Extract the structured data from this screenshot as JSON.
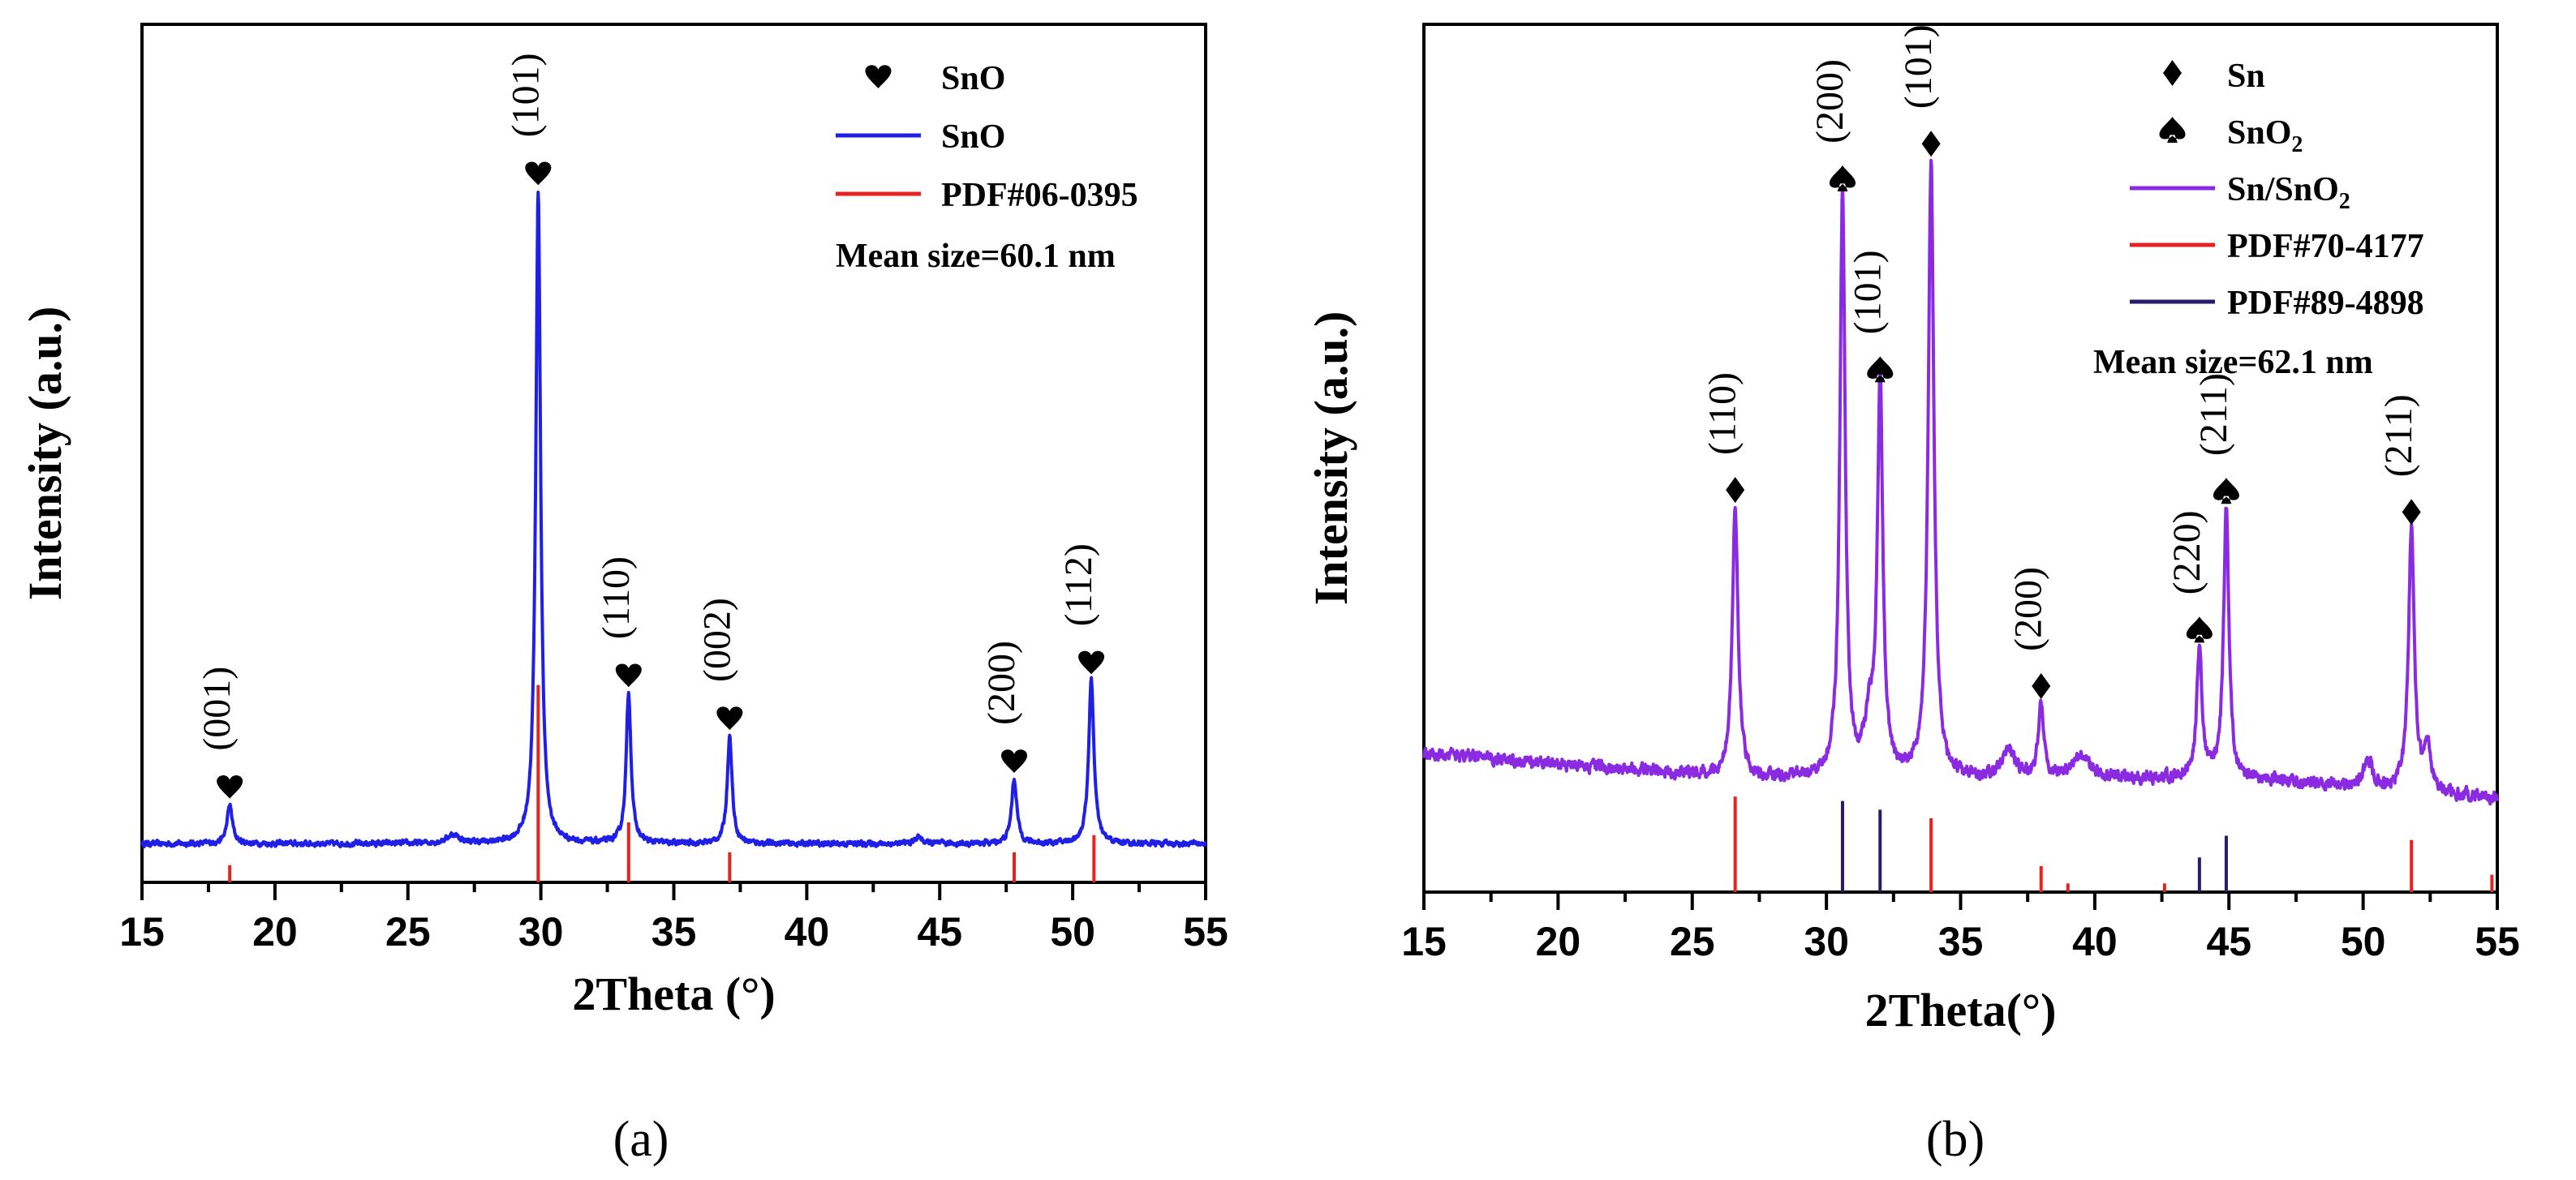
{
  "chart_data": [
    {
      "type": "line",
      "panel_label": "(a)",
      "xlabel": "2Theta (°)",
      "ylabel": "Intensity (a.u.)",
      "xlim": [
        15,
        55
      ],
      "ylim": [
        0,
        100
      ],
      "xticks": [
        15,
        20,
        25,
        30,
        35,
        40,
        45,
        50,
        55
      ],
      "series": [
        {
          "name": "SnO",
          "color": "#1f1fe6",
          "baseline": 4.5,
          "peaks": [
            {
              "x": 18.3,
              "h": 4.5,
              "w": 0.12
            },
            {
              "x": 26.7,
              "h": 1.0,
              "w": 0.3
            },
            {
              "x": 29.9,
              "h": 76,
              "w": 0.11
            },
            {
              "x": 33.3,
              "h": 17.5,
              "w": 0.11
            },
            {
              "x": 37.1,
              "h": 12.5,
              "w": 0.11
            },
            {
              "x": 44.2,
              "h": 0.8,
              "w": 0.15
            },
            {
              "x": 47.8,
              "h": 7.5,
              "w": 0.12
            },
            {
              "x": 50.7,
              "h": 19,
              "w": 0.12
            }
          ]
        }
      ],
      "reference_lines": [
        {
          "name": "PDF#06-0395",
          "color": "#e6231f",
          "sticks": [
            {
              "x": 18.3,
              "h": 2.0
            },
            {
              "x": 29.9,
              "h": 23
            },
            {
              "x": 33.3,
              "h": 7.0
            },
            {
              "x": 37.1,
              "h": 3.5
            },
            {
              "x": 47.8,
              "h": 3.5
            },
            {
              "x": 50.8,
              "h": 5.5
            }
          ]
        }
      ],
      "peak_labels": [
        {
          "x": 18.3,
          "marker": "heart",
          "text": "(001)"
        },
        {
          "x": 29.9,
          "marker": "heart",
          "text": "(101)"
        },
        {
          "x": 33.3,
          "marker": "heart",
          "text": "(110)"
        },
        {
          "x": 37.1,
          "marker": "heart",
          "text": "(002)"
        },
        {
          "x": 47.8,
          "marker": "heart",
          "text": "(200)"
        },
        {
          "x": 50.7,
          "marker": "heart",
          "text": "(112)"
        }
      ],
      "legend": [
        {
          "symbol": "heart",
          "label": "SnO"
        },
        {
          "symbol": "line",
          "color": "#1f1fe6",
          "label": "SnO"
        },
        {
          "symbol": "line",
          "color": "#e6231f",
          "label": "PDF#06-0395"
        }
      ],
      "annotation": "Mean size=60.1 nm",
      "legend_position": "top-right"
    },
    {
      "type": "line",
      "panel_label": "(b)",
      "xlabel": "2Theta(°)",
      "ylabel": "Intensity (a.u.)",
      "xlim": [
        15,
        55
      ],
      "ylim": [
        0,
        100
      ],
      "xticks": [
        15,
        20,
        25,
        30,
        35,
        40,
        45,
        50,
        55
      ],
      "series": [
        {
          "name": "Sn/SnO2",
          "color": "#8a2be2",
          "baseline": 13,
          "peaks": [
            {
              "x": 26.6,
              "h": 31,
              "w": 0.13
            },
            {
              "x": 30.6,
              "h": 67,
              "w": 0.12
            },
            {
              "x": 31.6,
              "h": 6,
              "w": 0.2
            },
            {
              "x": 32.0,
              "h": 45,
              "w": 0.12
            },
            {
              "x": 33.9,
              "h": 71,
              "w": 0.13
            },
            {
              "x": 36.8,
              "h": 3,
              "w": 0.3
            },
            {
              "x": 38.0,
              "h": 8.5,
              "w": 0.12
            },
            {
              "x": 39.5,
              "h": 2.5,
              "w": 0.4
            },
            {
              "x": 43.9,
              "h": 15,
              "w": 0.12
            },
            {
              "x": 44.9,
              "h": 31,
              "w": 0.12
            },
            {
              "x": 50.2,
              "h": 3,
              "w": 0.2
            },
            {
              "x": 51.8,
              "h": 30,
              "w": 0.13
            },
            {
              "x": 52.4,
              "h": 5,
              "w": 0.15
            }
          ]
        }
      ],
      "reference_lines": [
        {
          "name": "PDF#70-4177",
          "color": "#e6231f",
          "sticks": [
            {
              "x": 26.6,
              "h": 11
            },
            {
              "x": 33.9,
              "h": 8.5
            },
            {
              "x": 38.0,
              "h": 3.0
            },
            {
              "x": 39.0,
              "h": 1.0
            },
            {
              "x": 42.6,
              "h": 1.0
            },
            {
              "x": 51.8,
              "h": 6.0
            },
            {
              "x": 54.8,
              "h": 2.0
            }
          ]
        },
        {
          "name": "PDF#89-4898",
          "color": "#2a1a6e",
          "sticks": [
            {
              "x": 30.6,
              "h": 10.5
            },
            {
              "x": 32.0,
              "h": 9.5
            },
            {
              "x": 43.9,
              "h": 4.0
            },
            {
              "x": 44.9,
              "h": 6.5
            }
          ]
        }
      ],
      "peak_labels": [
        {
          "x": 26.6,
          "marker": "diamond",
          "text": "(110)"
        },
        {
          "x": 30.6,
          "marker": "spade",
          "text": "(200)"
        },
        {
          "x": 32.0,
          "marker": "spade",
          "text": "(101)"
        },
        {
          "x": 33.9,
          "marker": "diamond",
          "text": "(101)"
        },
        {
          "x": 38.0,
          "marker": "diamond",
          "text": "(200)"
        },
        {
          "x": 43.9,
          "marker": "spade",
          "text": "(220)"
        },
        {
          "x": 44.9,
          "marker": "spade",
          "text": "(211)"
        },
        {
          "x": 51.8,
          "marker": "diamond",
          "text": "(211)"
        }
      ],
      "legend": [
        {
          "symbol": "diamond",
          "label": "Sn"
        },
        {
          "symbol": "spade",
          "label": "SnO",
          "sub": "2"
        },
        {
          "symbol": "line",
          "color": "#8a2be2",
          "label": "Sn/SnO",
          "sub": "2"
        },
        {
          "symbol": "line",
          "color": "#e6231f",
          "label": "PDF#70-4177"
        },
        {
          "symbol": "line",
          "color": "#2a1a6e",
          "label": "PDF#89-4898"
        }
      ],
      "annotation": "Mean size=62.1 nm",
      "legend_position": "top-right"
    }
  ]
}
